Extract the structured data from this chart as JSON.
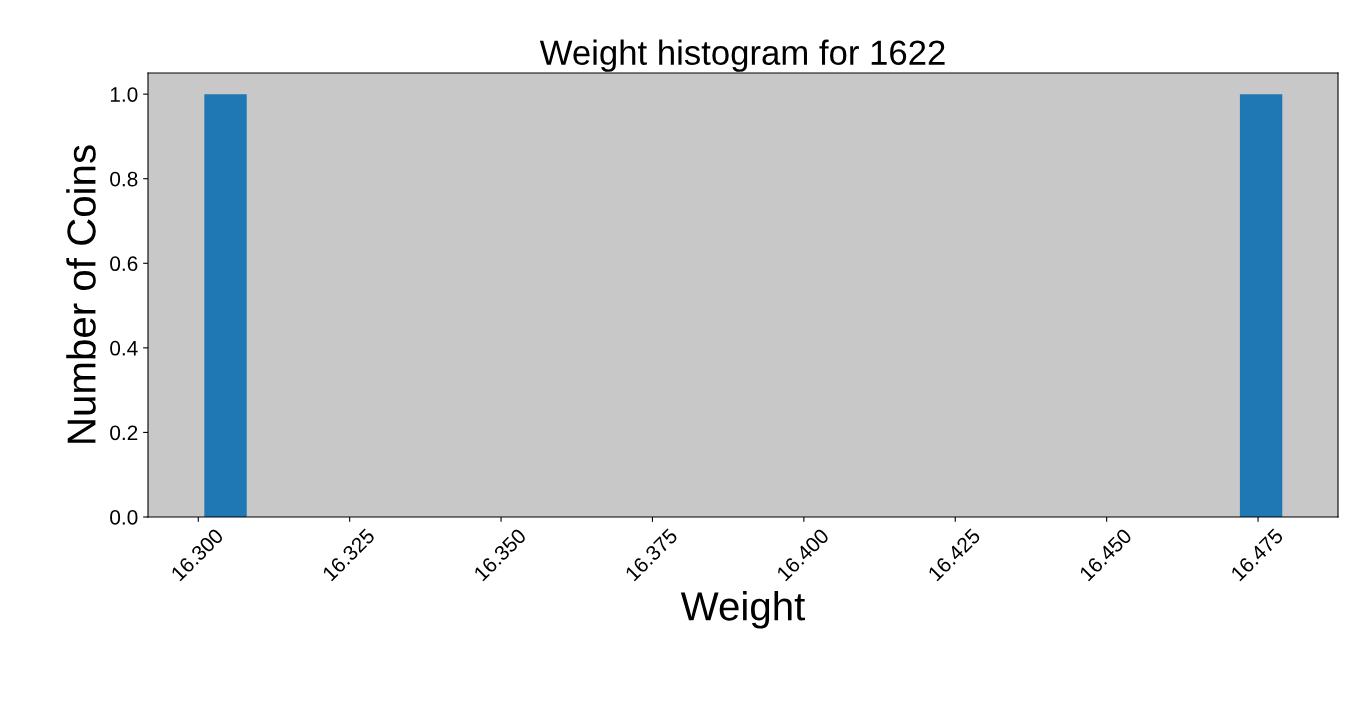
{
  "chart_data": {
    "type": "histogram",
    "title": "Weight histogram for 1622",
    "xlabel": "Weight",
    "ylabel": "Number of Coins",
    "bins": [
      16.301,
      16.308,
      16.472,
      16.479
    ],
    "values": [
      1,
      0,
      1
    ],
    "color": "#1f77b4",
    "xlim": [
      16.2917,
      16.4882
    ],
    "xticks": [
      {
        "value": 16.3,
        "label": "16.300"
      },
      {
        "value": 16.325,
        "label": "16.325"
      },
      {
        "value": 16.35,
        "label": "16.350"
      },
      {
        "value": 16.375,
        "label": "16.375"
      },
      {
        "value": 16.4,
        "label": "16.400"
      },
      {
        "value": 16.425,
        "label": "16.425"
      },
      {
        "value": 16.45,
        "label": "16.450"
      },
      {
        "value": 16.475,
        "label": "16.475"
      }
    ],
    "ylim": [
      0,
      1.05
    ],
    "yticks": [
      {
        "value": 0,
        "label": "0.0"
      },
      {
        "value": 0.2,
        "label": "0.2"
      },
      {
        "value": 0.4,
        "label": "0.4"
      },
      {
        "value": 0.6,
        "label": "0.6"
      },
      {
        "value": 0.8,
        "label": "0.8"
      },
      {
        "value": 1,
        "label": "1.0"
      }
    ],
    "grid": false,
    "legend": false
  }
}
